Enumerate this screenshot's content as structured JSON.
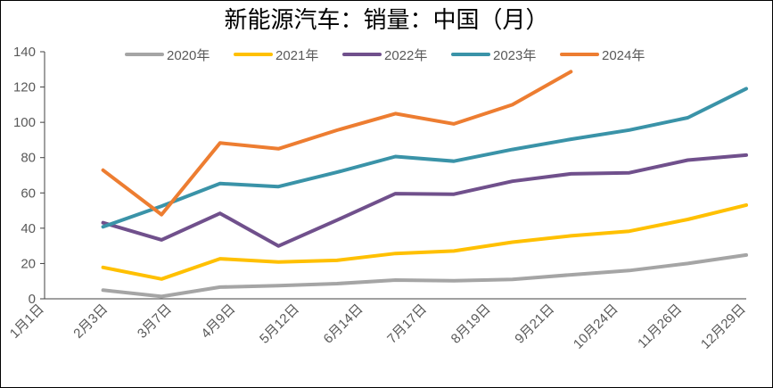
{
  "chart_data": {
    "type": "line",
    "title": "新能源汽车：销量：中国（月）",
    "xlabel": "",
    "ylabel": "",
    "categories": [
      "1月1日",
      "2月3日",
      "3月7日",
      "4月9日",
      "5月12日",
      "6月14日",
      "7月17日",
      "8月19日",
      "9月21日",
      "10月24日",
      "11月26日",
      "12月29日"
    ],
    "x_dates": [
      "01-01",
      "01-15",
      "01-31",
      "02-15",
      "02-28",
      "03-15",
      "03-31",
      "04-15",
      "04-30",
      "05-15",
      "05-31",
      "06-15",
      "06-30",
      "07-15",
      "07-31",
      "08-15",
      "08-31",
      "09-15",
      "09-30",
      "10-15",
      "10-31",
      "11-15",
      "11-30",
      "12-15",
      "12-31"
    ],
    "ylim": [
      0,
      140
    ],
    "yticks": [
      0,
      20,
      40,
      60,
      80,
      100,
      120,
      140
    ],
    "grid": false,
    "legend_position": "top",
    "series": [
      {
        "name": "2020年",
        "color": "#A5A5A5",
        "x": [
          "01-31",
          "02-28",
          "03-31",
          "04-30",
          "05-31",
          "06-30",
          "07-31",
          "08-31",
          "09-30",
          "10-31",
          "11-30",
          "12-31"
        ],
        "values": [
          4.9,
          1.3,
          6.6,
          7.5,
          8.6,
          10.6,
          10.2,
          11.0,
          13.6,
          16.0,
          20.0,
          24.8
        ]
      },
      {
        "name": "2021年",
        "color": "#FFC000",
        "x": [
          "01-31",
          "02-28",
          "03-31",
          "04-30",
          "05-31",
          "06-30",
          "07-31",
          "08-31",
          "09-30",
          "10-31",
          "11-30",
          "12-31"
        ],
        "values": [
          17.8,
          11.2,
          22.7,
          20.8,
          21.8,
          25.7,
          27.1,
          32.1,
          35.7,
          38.3,
          45.0,
          53.1
        ]
      },
      {
        "name": "2022年",
        "color": "#70508C",
        "x": [
          "01-31",
          "02-28",
          "03-31",
          "04-30",
          "05-31",
          "06-30",
          "07-31",
          "08-31",
          "09-30",
          "10-31",
          "11-30",
          "12-31"
        ],
        "values": [
          43.1,
          33.4,
          48.4,
          29.9,
          44.6,
          59.6,
          59.3,
          66.6,
          70.8,
          71.4,
          78.6,
          81.4
        ]
      },
      {
        "name": "2023年",
        "color": "#3A93A8",
        "x": [
          "01-31",
          "02-28",
          "03-31",
          "04-30",
          "05-31",
          "06-30",
          "07-31",
          "08-31",
          "09-30",
          "10-31",
          "11-30",
          "12-31"
        ],
        "values": [
          40.8,
          52.5,
          65.3,
          63.6,
          71.7,
          80.6,
          78.0,
          84.6,
          90.4,
          95.6,
          102.6,
          119.1
        ]
      },
      {
        "name": "2024年",
        "color": "#ED7D31",
        "x": [
          "01-31",
          "02-28",
          "03-31",
          "04-30",
          "05-31",
          "06-30",
          "07-31",
          "08-31",
          "09-30"
        ],
        "values": [
          72.9,
          47.7,
          88.3,
          85.0,
          95.5,
          104.9,
          99.1,
          110.0,
          128.7
        ]
      }
    ]
  }
}
